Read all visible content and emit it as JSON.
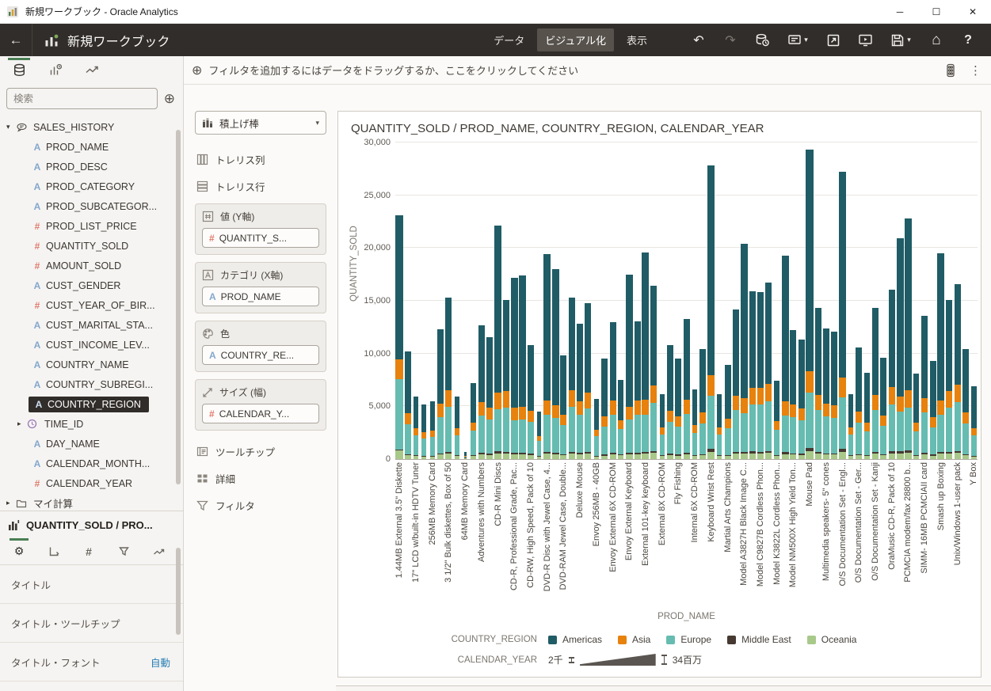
{
  "titlebar": {
    "app_title": "新規ワークブック - Oracle Analytics"
  },
  "icons": {
    "minimize": "─",
    "maximize": "☐",
    "close": "✕",
    "back": "←",
    "undo": "↶",
    "redo": "↷",
    "home": "⌂",
    "help": "?",
    "add": "⊕",
    "kebab": "⋮",
    "gear": "⚙",
    "caret_down": "▾",
    "expanded": "▾",
    "collapsed": "▸",
    "hash": "#",
    "letter": "A"
  },
  "appbar": {
    "workbook_title": "新規ワークブック",
    "tabs": [
      {
        "label": "データ",
        "selected": false
      },
      {
        "label": "ビジュアル化",
        "selected": true
      },
      {
        "label": "表示",
        "selected": false
      }
    ]
  },
  "data_panel": {
    "search_placeholder": "検索",
    "dataset": "SALES_HISTORY",
    "fields": [
      {
        "name": "PROD_NAME",
        "type": "text"
      },
      {
        "name": "PROD_DESC",
        "type": "text"
      },
      {
        "name": "PROD_CATEGORY",
        "type": "text"
      },
      {
        "name": "PROD_SUBCATEGOR...",
        "type": "text"
      },
      {
        "name": "PROD_LIST_PRICE",
        "type": "number"
      },
      {
        "name": "QUANTITY_SOLD",
        "type": "number"
      },
      {
        "name": "AMOUNT_SOLD",
        "type": "number"
      },
      {
        "name": "CUST_GENDER",
        "type": "text"
      },
      {
        "name": "CUST_YEAR_OF_BIR...",
        "type": "number"
      },
      {
        "name": "CUST_MARITAL_STA...",
        "type": "text"
      },
      {
        "name": "CUST_INCOME_LEV...",
        "type": "text"
      },
      {
        "name": "COUNTRY_NAME",
        "type": "text"
      },
      {
        "name": "COUNTRY_SUBREGI...",
        "type": "text"
      },
      {
        "name": "COUNTRY_REGION",
        "type": "text",
        "selected": true
      },
      {
        "name": "TIME_ID",
        "type": "time",
        "collapsed": true
      },
      {
        "name": "DAY_NAME",
        "type": "text"
      },
      {
        "name": "CALENDAR_MONTH...",
        "type": "text"
      },
      {
        "name": "CALENDAR_YEAR",
        "type": "number"
      }
    ],
    "my_calculations": "マイ計算"
  },
  "props_panel": {
    "title": "QUANTITY_SOLD / PRO...",
    "rows": [
      {
        "label": "タイトル",
        "value": ""
      },
      {
        "label": "タイトル・ツールチップ",
        "value": ""
      },
      {
        "label": "タイトル・フォント",
        "value": "自動"
      }
    ]
  },
  "filter_bar": {
    "text": "フィルタを追加するにはデータをドラッグするか、ここをクリックしてください"
  },
  "grammar_panel": {
    "viz_type": "積上げ棒",
    "items_top": [
      "トレリス列",
      "トレリス行"
    ],
    "drop_zones": [
      {
        "label": "値 (Y軸)",
        "zone_icon": "hash-box",
        "pills": [
          {
            "name": "QUANTITY_S...",
            "type": "number"
          }
        ]
      },
      {
        "label": "カテゴリ (X軸)",
        "zone_icon": "letter-box",
        "pills": [
          {
            "name": "PROD_NAME",
            "type": "text"
          }
        ]
      },
      {
        "label": "色",
        "zone_icon": "palette",
        "pills": [
          {
            "name": "COUNTRY_RE...",
            "type": "text"
          }
        ]
      },
      {
        "label": "サイズ (幅)",
        "zone_icon": "resize",
        "pills": [
          {
            "name": "CALENDAR_Y...",
            "type": "number"
          }
        ]
      }
    ],
    "items_bottom": [
      "ツールチップ",
      "詳細",
      "フィルタ"
    ]
  },
  "chart_data": {
    "type": "bar",
    "stacked": true,
    "title": "QUANTITY_SOLD / PROD_NAME, COUNTRY_REGION, CALENDAR_YEAR",
    "xlabel": "PROD_NAME",
    "ylabel": "QUANTITY_SOLD",
    "ylim": [
      0,
      30000
    ],
    "yticks": [
      "0",
      "5,000",
      "10,000",
      "15,000",
      "20,000",
      "25,000",
      "30,000"
    ],
    "grid": true,
    "legend": {
      "title": "COUNTRY_REGION",
      "position": "bottom",
      "entries": [
        {
          "name": "Americas",
          "color": "#205c66"
        },
        {
          "name": "Asia",
          "color": "#e6820d"
        },
        {
          "name": "Europe",
          "color": "#66bcb1"
        },
        {
          "name": "Middle East",
          "color": "#453931"
        },
        {
          "name": "Oceania",
          "color": "#a8c98a"
        }
      ]
    },
    "size_legend": {
      "title": "CALENDAR_YEAR",
      "min_label": "2千",
      "max_label": "34百万"
    },
    "series_order_bottom_to_top": [
      "Oceania",
      "Middle East",
      "Europe",
      "Asia",
      "Americas"
    ],
    "categories": [
      "1.44MB External 3.5\" Diskette",
      "17\" LCD w/built-in HDTV Tuner",
      "256MB Memory Card",
      "3 1/2\" Bulk diskettes, Box of 50",
      "64MB Memory Card",
      "Adventures with Numbers",
      "CD-R Mini Discs",
      "CD-R, Professional Grade, Pac...",
      "CD-RW, High Speed, Pack of 10",
      "DVD-R Disc with Jewel Case, 4...",
      "DVD-RAM Jewel Case, Double...",
      "Deluxe Mouse",
      "Envoy 256MB - 40GB",
      "Envoy External 6X CD-ROM",
      "Envoy External Keyboard",
      "External 101-key keyboard",
      "External 8X CD-ROM",
      "Fly Fishing",
      "Internal 6X CD-ROM",
      "Keyboard Wrist Rest",
      "Martial Arts Champions",
      "Model A3827H Black Image C...",
      "Model C9827B Cordless Phon...",
      "Model K3822L Cordless Phon...",
      "Model NM500X High Yield Ton...",
      "Mouse Pad",
      "Multimedia speakers- 5\" cones",
      "O/S Documentation Set - Engl...",
      "O/S Documentation Set - Ger...",
      "O/S Documentation Set - Kanji",
      "OraMusic CD-R, Pack of 10",
      "PCMCIA modem/fax 28800 b...",
      "SIMM- 16MB PCMCIAII card",
      "Smash up Boxing",
      "Unix/Windows 1-user pack",
      "Y Box"
    ],
    "label_every_n_bars": 2,
    "bar_segment_order": [
      "oceania",
      "middle_east",
      "europe",
      "asia",
      "americas",
      "width_px"
    ],
    "bars": [
      [
        800,
        100,
        6650,
        1900,
        13650,
        10
      ],
      [
        350,
        100,
        2850,
        1020,
        5860,
        8
      ],
      [
        270,
        60,
        1900,
        650,
        3070,
        6
      ],
      [
        230,
        50,
        1650,
        570,
        2650,
        6
      ],
      [
        250,
        50,
        1750,
        600,
        2800,
        6
      ],
      [
        430,
        120,
        3440,
        1230,
        7080,
        8
      ],
      [
        540,
        150,
        4280,
        1530,
        8800,
        8
      ],
      [
        270,
        60,
        1900,
        650,
        3070,
        6
      ],
      [
        10,
        5,
        90,
        35,
        360,
        3
      ],
      [
        320,
        70,
        2300,
        790,
        3720,
        7
      ],
      [
        440,
        130,
        3560,
        1270,
        7300,
        8
      ],
      [
        400,
        120,
        3230,
        1160,
        6640,
        8
      ],
      [
        550,
        220,
        3990,
        1550,
        15840,
        9
      ],
      [
        530,
        150,
        4230,
        1510,
        8680,
        8
      ],
      [
        430,
        170,
        3090,
        1200,
        12260,
        9
      ],
      [
        440,
        170,
        3130,
        1220,
        12440,
        9
      ],
      [
        380,
        110,
        3020,
        1080,
        6210,
        8
      ],
      [
        200,
        50,
        1440,
        500,
        2310,
        5
      ],
      [
        490,
        190,
        3490,
        1360,
        13870,
        9
      ],
      [
        450,
        180,
        3240,
        1260,
        12870,
        9
      ],
      [
        340,
        100,
        2760,
        990,
        5660,
        8
      ],
      [
        540,
        150,
        4280,
        1530,
        8800,
        8
      ],
      [
        450,
        130,
        3600,
        1290,
        7380,
        8
      ],
      [
        520,
        150,
        4140,
        1480,
        8510,
        8
      ],
      [
        260,
        60,
        1820,
        630,
        2930,
        6
      ],
      [
        330,
        100,
        2670,
        960,
        5490,
        8
      ],
      [
        460,
        130,
        3640,
        1300,
        7470,
        8
      ],
      [
        340,
        80,
        2400,
        830,
        3850,
        7
      ],
      [
        440,
        170,
        3140,
        1220,
        12480,
        9
      ],
      [
        460,
        130,
        3650,
        1310,
        7500,
        8
      ],
      [
        490,
        200,
        3530,
        1370,
        14010,
        9
      ],
      [
        580,
        160,
        4610,
        1650,
        9450,
        8
      ],
      [
        270,
        60,
        1950,
        670,
        3150,
        6
      ],
      [
        380,
        110,
        3020,
        1080,
        6210,
        8
      ],
      [
        330,
        100,
        2660,
        950,
        5460,
        8
      ],
      [
        460,
        130,
        3710,
        1330,
        7620,
        8
      ],
      [
        300,
        70,
        2110,
        730,
        3390,
        6
      ],
      [
        360,
        100,
        2910,
        1040,
        5990,
        8
      ],
      [
        700,
        280,
        5010,
        1950,
        19910,
        9
      ],
      [
        270,
        60,
        1950,
        670,
        3150,
        6
      ],
      [
        310,
        90,
        2510,
        900,
        5140,
        8
      ],
      [
        500,
        140,
        3980,
        1420,
        8160,
        8
      ],
      [
        510,
        200,
        3670,
        1430,
        14590,
        9
      ],
      [
        560,
        160,
        4450,
        1590,
        9140,
        8
      ],
      [
        550,
        160,
        4440,
        1590,
        9110,
        8
      ],
      [
        590,
        170,
        4690,
        1680,
        9620,
        8
      ],
      [
        330,
        70,
        2370,
        810,
        3820,
        7
      ],
      [
        480,
        190,
        3470,
        1350,
        13810,
        9
      ],
      [
        430,
        120,
        3420,
        1220,
        7010,
        8
      ],
      [
        400,
        110,
        3160,
        1130,
        6500,
        8
      ],
      [
        730,
        290,
        5270,
        2050,
        20960,
        10
      ],
      [
        500,
        140,
        4000,
        1430,
        8230,
        8
      ],
      [
        430,
        120,
        3470,
        1240,
        7140,
        8
      ],
      [
        420,
        120,
        3390,
        1210,
        6960,
        8
      ],
      [
        680,
        270,
        4900,
        1900,
        19450,
        9
      ],
      [
        270,
        60,
        1950,
        670,
        3150,
        6
      ],
      [
        370,
        110,
        2970,
        1060,
        6090,
        8
      ],
      [
        290,
        80,
        2280,
        820,
        4680,
        7
      ],
      [
        500,
        140,
        4000,
        1430,
        8230,
        8
      ],
      [
        340,
        100,
        2690,
        960,
        5510,
        8
      ],
      [
        560,
        160,
        4490,
        1610,
        9230,
        8
      ],
      [
        520,
        210,
        3760,
        1460,
        14950,
        9
      ],
      [
        570,
        230,
        4100,
        1600,
        16300,
        9
      ],
      [
        280,
        80,
        2270,
        810,
        4660,
        7
      ],
      [
        480,
        140,
        3810,
        1360,
        7810,
        8
      ],
      [
        330,
        90,
        2600,
        930,
        5350,
        8
      ],
      [
        490,
        200,
        3510,
        1370,
        13930,
        9
      ],
      [
        530,
        150,
        4230,
        1510,
        8680,
        8
      ],
      [
        580,
        170,
        4650,
        1660,
        9540,
        8
      ],
      [
        360,
        100,
        2910,
        1040,
        5990,
        8
      ],
      [
        240,
        70,
        1930,
        690,
        3970,
        7
      ]
    ]
  }
}
